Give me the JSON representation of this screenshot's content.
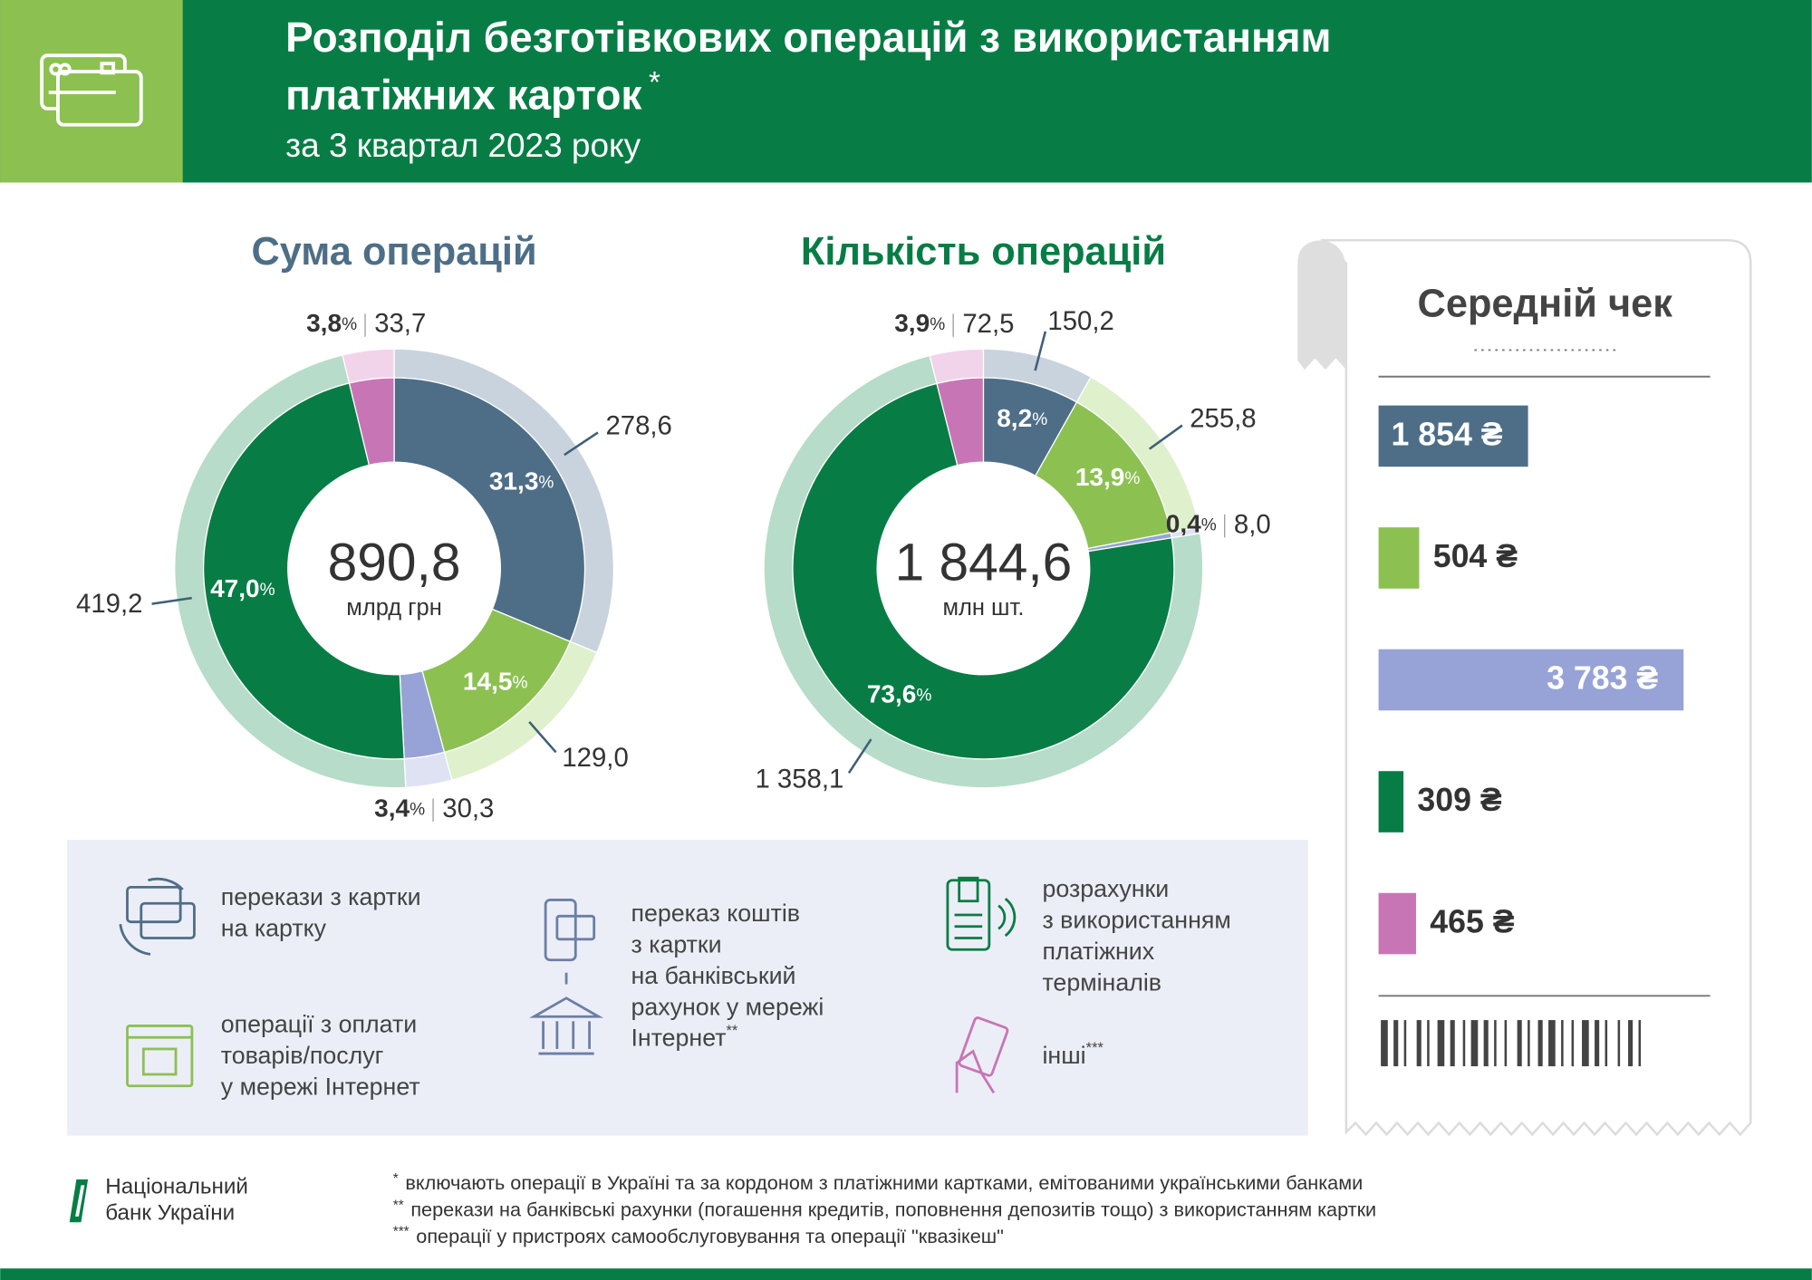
{
  "header": {
    "title_line1": "Розподіл безготівкових операцій з використанням",
    "title_line2": "платіжних карток",
    "title_mark": "*",
    "subtitle": "за 3 квартал 2023 року"
  },
  "chart_data": [
    {
      "type": "pie",
      "title": "Сума операцій",
      "total_label": "890,8",
      "total_unit": "млрд грн",
      "values": [
        278.6,
        129.0,
        30.3,
        419.2,
        33.7
      ],
      "value_labels": [
        "278,6",
        "129,0",
        "30,3",
        "419,2",
        "33,7"
      ],
      "percents": [
        31.3,
        14.5,
        3.4,
        47.0,
        3.8
      ],
      "percent_labels": [
        "31,3",
        "14,5",
        "3,4",
        "47,0",
        "3,8"
      ],
      "percent_unit": "%",
      "colors": [
        "#4e6e87",
        "#8cc152",
        "#97a3d6",
        "#077d45",
        "#c875b6"
      ],
      "outer_colors": [
        "#c9d3dd",
        "#dff0cc",
        "#dfe2f3",
        "#b7dcc9",
        "#f2d4ea"
      ]
    },
    {
      "type": "pie",
      "title": "Кількість операцій",
      "total_label": "1 844,6",
      "total_unit": "млн шт.",
      "values": [
        150.2,
        255.8,
        8.0,
        1358.1,
        72.5
      ],
      "value_labels": [
        "150,2",
        "255,8",
        "8,0",
        "1 358,1",
        "72,5"
      ],
      "percents": [
        8.2,
        13.9,
        0.4,
        73.6,
        3.9
      ],
      "percent_labels": [
        "8,2",
        "13,9",
        "0,4",
        "73,6",
        "3,9"
      ],
      "percent_unit": "%",
      "colors": [
        "#4e6e87",
        "#8cc152",
        "#97a3d6",
        "#077d45",
        "#c875b6"
      ],
      "outer_colors": [
        "#c9d3dd",
        "#dff0cc",
        "#dfe2f3",
        "#b7dcc9",
        "#f2d4ea"
      ]
    },
    {
      "type": "bar",
      "title": "Середній чек",
      "values": [
        1854,
        504,
        3783,
        309,
        465
      ],
      "value_labels": [
        "1 854 ₴",
        "504 ₴",
        "3 783 ₴",
        "309 ₴",
        "465 ₴"
      ],
      "colors": [
        "#4e6e87",
        "#8cc152",
        "#97a3d6",
        "#077d45",
        "#c875b6"
      ]
    }
  ],
  "legend": [
    {
      "lines": [
        "перекази з картки",
        "на картку"
      ]
    },
    {
      "lines": [
        "операції з оплати",
        "товарів/послуг",
        "у мережі Інтернет"
      ]
    },
    {
      "lines": [
        "переказ коштів",
        "з картки",
        "на банківський",
        "рахунок у мережі",
        "Інтернет"
      ],
      "mark": "**"
    },
    {
      "lines": [
        "розрахунки",
        "з використанням",
        "платіжних",
        "терміналів"
      ]
    },
    {
      "lines": [
        "інші"
      ],
      "mark": "***"
    }
  ],
  "footer": {
    "logo": [
      "Національний",
      "банк України"
    ],
    "notes": [
      {
        "mark": "*",
        "text": "включають операції в Україні та за кордоном з платіжними картками, емітованими українськими банками"
      },
      {
        "mark": "**",
        "text": "перекази на банківські рахунки (погашення кредитів, поповнення депозитів тощо) з використанням картки"
      },
      {
        "mark": "***",
        "text": "операції у пристроях самообслуговування та операції \"квазікеш\""
      }
    ]
  }
}
